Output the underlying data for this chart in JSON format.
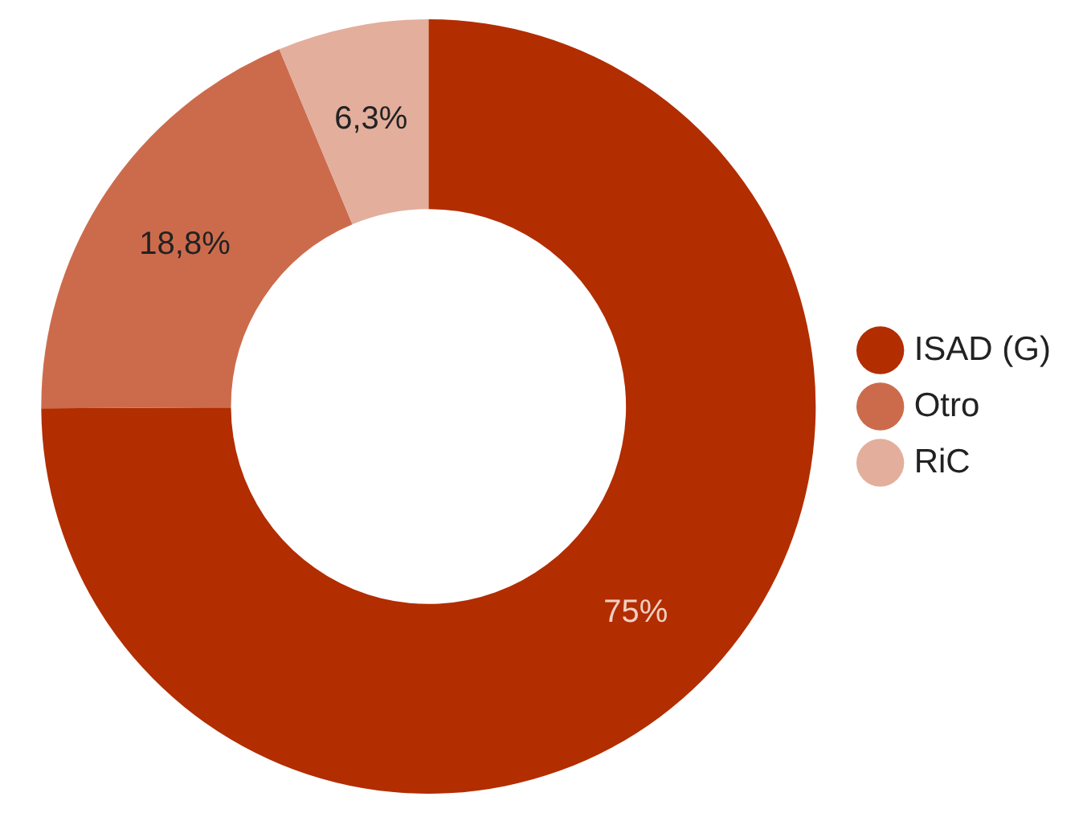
{
  "chart_data": {
    "type": "donut",
    "categories": [
      "ISAD (G)",
      "Otro",
      "RiC"
    ],
    "values": [
      75,
      18.8,
      6.3
    ],
    "colors": [
      "#b22d00",
      "#cc6b4c",
      "#e3ae9c"
    ],
    "value_labels": [
      "75%",
      "18,8%",
      "6,3%"
    ],
    "legend": "right"
  }
}
